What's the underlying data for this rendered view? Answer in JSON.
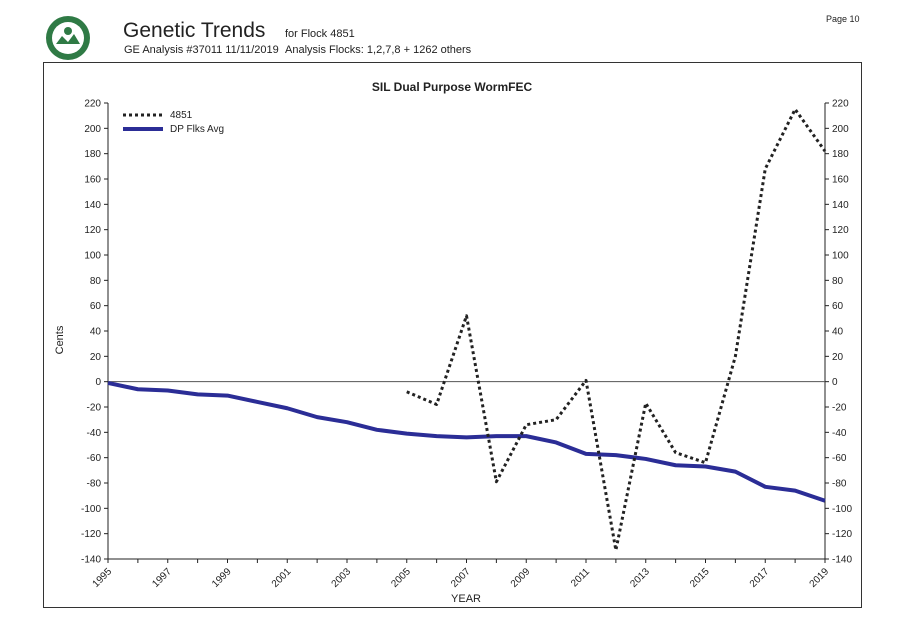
{
  "header": {
    "title": "Genetic Trends",
    "analysis": "GE Analysis #37011 11/11/2019",
    "flock": "for Flock 4851",
    "analysis_flocks": "Analysis Flocks: 1,2,7,8 + 1262 others",
    "page": "Page 10",
    "logo": "SIL"
  },
  "chart_data": {
    "type": "line",
    "title": "SIL Dual Purpose WormFEC",
    "xlabel": "YEAR",
    "ylabel": "Cents",
    "ylim": [
      -140,
      220
    ],
    "yticks": [
      220,
      200,
      180,
      160,
      140,
      120,
      100,
      80,
      60,
      40,
      20,
      0,
      -20,
      -40,
      -60,
      -80,
      -100,
      -120,
      -140
    ],
    "xlim": [
      1995,
      2019
    ],
    "xticks": [
      1995,
      1997,
      1999,
      2001,
      2003,
      2005,
      2007,
      2009,
      2011,
      2013,
      2015,
      2017,
      2019
    ],
    "legend": "top-left",
    "series": [
      {
        "name": "4851",
        "style": "dotted",
        "color": "#222222",
        "x": [
          2005,
          2006,
          2007,
          2008,
          2009,
          2010,
          2011,
          2012,
          2013,
          2014,
          2015,
          2016,
          2017,
          2018,
          2019
        ],
        "values": [
          -8,
          -18,
          52,
          -79,
          -34,
          -30,
          1,
          -133,
          -17,
          -56,
          -64,
          20,
          168,
          215,
          182
        ]
      },
      {
        "name": "DP Flks Avg",
        "style": "solid",
        "color": "#2b2d96",
        "x": [
          1995,
          1996,
          1997,
          1998,
          1999,
          2000,
          2001,
          2002,
          2003,
          2004,
          2005,
          2006,
          2007,
          2008,
          2009,
          2010,
          2011,
          2012,
          2013,
          2014,
          2015,
          2016,
          2017,
          2018,
          2019
        ],
        "values": [
          -1,
          -6,
          -7,
          -10,
          -11,
          -16,
          -21,
          -28,
          -32,
          -38,
          -41,
          -43,
          -44,
          -43,
          -43,
          -48,
          -57,
          -58,
          -61,
          -66,
          -67,
          -71,
          -83,
          -86,
          -94
        ]
      }
    ]
  }
}
